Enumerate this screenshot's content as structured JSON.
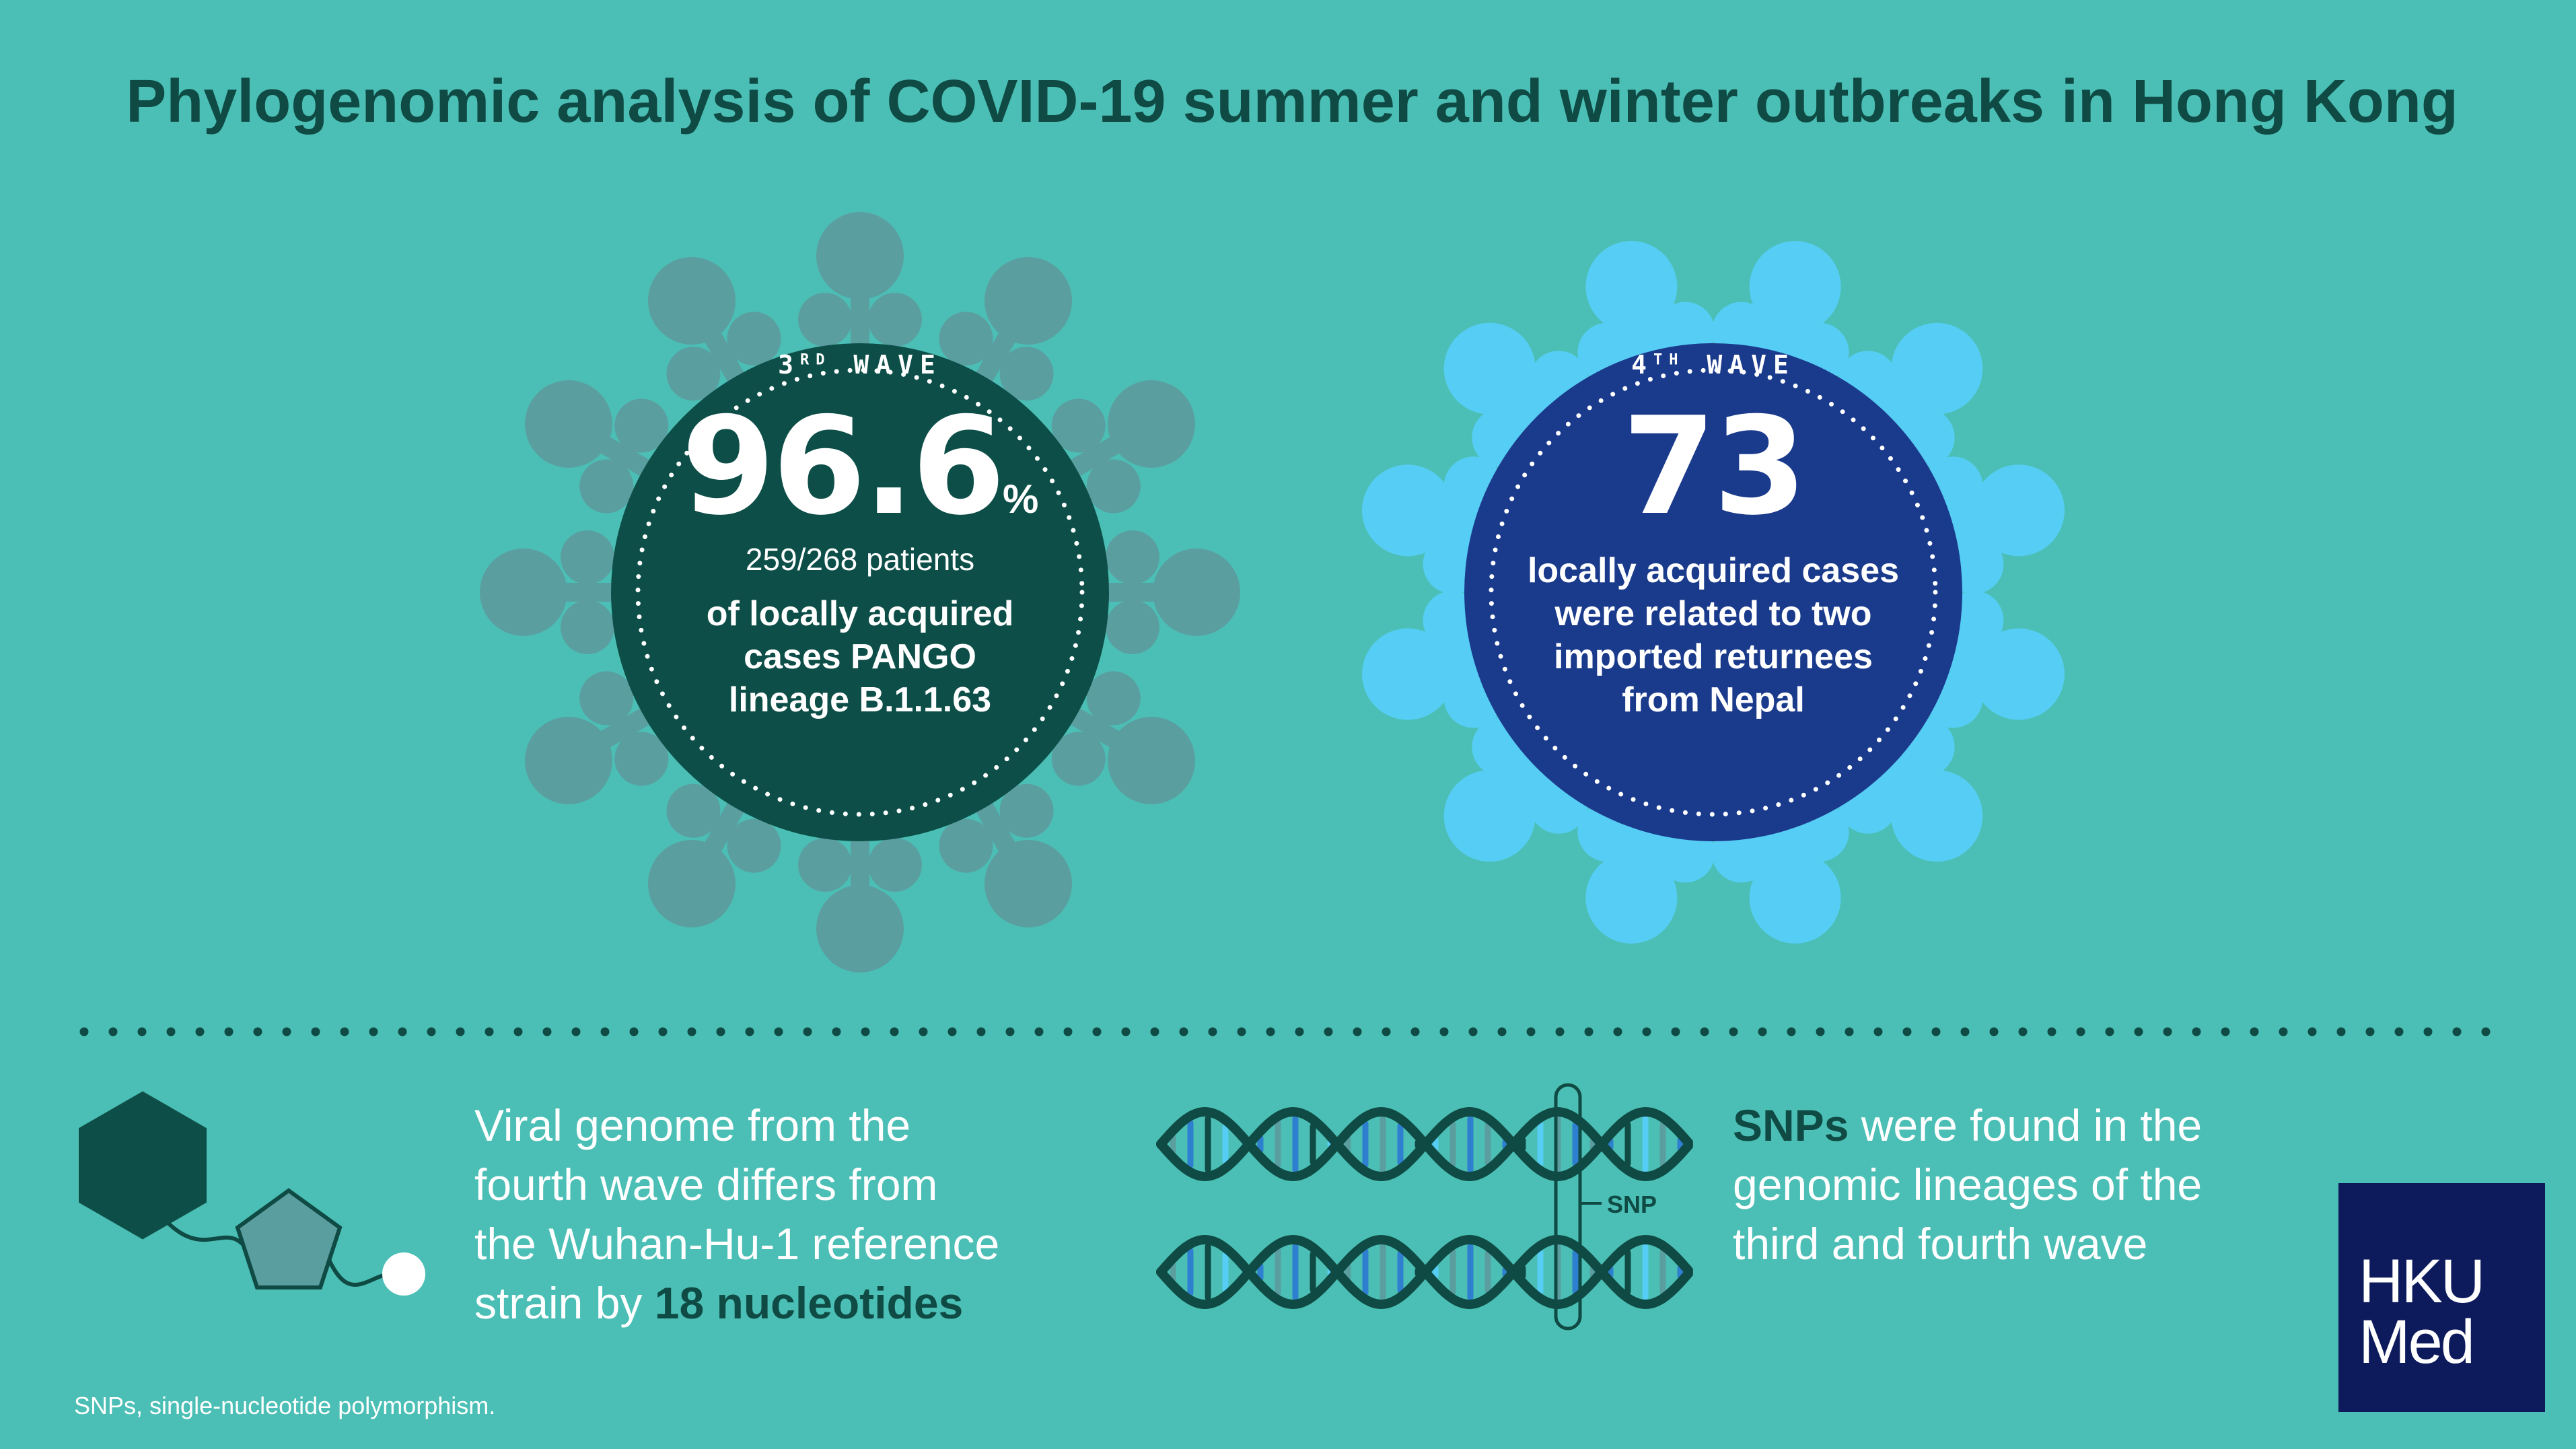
{
  "title": "Phylogenomic analysis of COVID-19 summer and winter outbreaks in Hong Kong",
  "colors": {
    "background": "#4bbfb5",
    "dark_teal": "#0f4a44",
    "virus_grey": "#5b9ea0",
    "virus_blue": "#56cdf4",
    "wave3_circle": "#0d4f48",
    "wave4_circle": "#1a3a8c",
    "logo_bg": "#0d1b5c"
  },
  "wave3": {
    "label_prefix": "3",
    "label_sup": "RD",
    "label_suffix": " WAVE",
    "value": "96.6",
    "unit": "%",
    "patients": "259/268 patients",
    "description_lines": [
      "of locally acquired",
      "cases PANGO",
      "lineage B.1.1.63"
    ]
  },
  "wave4": {
    "label_prefix": "4",
    "label_sup": "TH",
    "label_suffix": " WAVE",
    "value": "73",
    "description_lines": [
      "locally acquired cases",
      "were related to two",
      "imported returnees",
      "from Nepal"
    ]
  },
  "genome_text": {
    "line1": "Viral genome from the",
    "line2": "fourth wave differs from",
    "line3": "the Wuhan-Hu-1 reference",
    "line4_prefix": "strain by ",
    "line4_highlight": "18 nucleotides"
  },
  "snp_text": {
    "line1_highlight": "SNPs",
    "line1_rest": " were found in the",
    "line2": "genomic lineages of the",
    "line3": "third and fourth wave"
  },
  "snp_marker_label": "SNP",
  "footnote": "SNPs, single-nucleotide polymorphism.",
  "logo": {
    "line1": "HKU",
    "line2": "Med"
  },
  "icons": [
    "virus-icon",
    "hexagon-icon",
    "pentagon-icon",
    "dna-icon"
  ]
}
